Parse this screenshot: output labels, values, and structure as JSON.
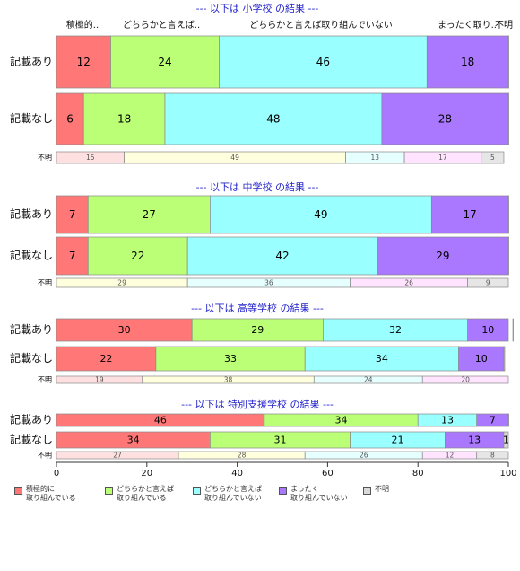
{
  "colors": [
    "#ff7777",
    "#bbff77",
    "#99ffff",
    "#aa77ff",
    "#d9d9d9"
  ],
  "unknown_colors": [
    "#ffe0e0",
    "#ffffdd",
    "#e6ffff",
    "#ffe3ff",
    "#e6e6e6"
  ],
  "top_headers": [
    "積極的..",
    "どちらかと言えば..",
    "どちらかと言えば取り組んでいない",
    "まったく取り..",
    "不明"
  ],
  "legend": [
    {
      "label": "積極的に\n取り組んでいる"
    },
    {
      "label": "どちらかと言えば\n取り組んでいる"
    },
    {
      "label": "どちらかと言えば\n取り組んでいない"
    },
    {
      "label": "まったく\n取り組んでいない"
    },
    {
      "label": "不明"
    }
  ],
  "chart_data": {
    "type": "bar",
    "orientation": "horizontal",
    "stacked": "percent",
    "xlim": [
      0,
      100
    ],
    "xticks": [
      0,
      20,
      40,
      60,
      80,
      100
    ],
    "categories": [
      "積極的に取り組んでいる",
      "どちらかと言えば取り組んでいる",
      "どちらかと言えば取り組んでいない",
      "まったく取り組んでいない",
      "不明"
    ],
    "groups": [
      {
        "title": "--- 以下は 小学校 の結果 ---",
        "rows": [
          {
            "label": "記載あり",
            "values": [
              12,
              24,
              46,
              18,
              0.4
            ],
            "labels": [
              "12",
              "24",
              "46",
              "18",
              ""
            ]
          },
          {
            "label": "記載なし",
            "values": [
              6,
              18,
              48,
              28,
              0.4
            ],
            "labels": [
              "6",
              "18",
              "48",
              "28",
              ""
            ]
          },
          {
            "label": "不明",
            "values": [
              15,
              49,
              13,
              17,
              5
            ],
            "labels": [
              "15",
              "49",
              "13",
              "17",
              "5"
            ]
          }
        ]
      },
      {
        "title": "--- 以下は 中学校 の結果 ---",
        "rows": [
          {
            "label": "記載あり",
            "values": [
              7,
              27,
              49,
              17,
              0.4
            ],
            "labels": [
              "7",
              "27",
              "49",
              "17",
              ""
            ]
          },
          {
            "label": "記載なし",
            "values": [
              7,
              22,
              42,
              29,
              0.4
            ],
            "labels": [
              "7",
              "22",
              "42",
              "29",
              ""
            ]
          },
          {
            "label": "不明",
            "values": [
              0,
              29,
              36,
              26,
              9
            ],
            "labels": [
              "",
              "29",
              "36",
              "26",
              "9"
            ]
          }
        ]
      },
      {
        "title": "--- 以下は 高等学校 の結果 ---",
        "rows": [
          {
            "label": "記載あり",
            "values": [
              30,
              29,
              32,
              10,
              0.2
            ],
            "labels": [
              "30",
              "29",
              "32",
              "10",
              ""
            ]
          },
          {
            "label": "記載なし",
            "values": [
              22,
              33,
              34,
              10,
              0.2
            ],
            "labels": [
              "22",
              "33",
              "34",
              "10",
              ""
            ]
          },
          {
            "label": "不明",
            "values": [
              19,
              38,
              24,
              20,
              0
            ],
            "labels": [
              "19",
              "38",
              "24",
              "20",
              ""
            ]
          }
        ]
      },
      {
        "title": "--- 以下は 特別支援学校 の結果 ---",
        "rows": [
          {
            "label": "記載あり",
            "values": [
              46,
              34,
              13,
              7,
              0.2
            ],
            "labels": [
              "46",
              "34",
              "13",
              "7",
              ""
            ]
          },
          {
            "label": "記載なし",
            "values": [
              34,
              31,
              21,
              13,
              1
            ],
            "labels": [
              "34",
              "31",
              "21",
              "13",
              "1"
            ]
          },
          {
            "label": "不明",
            "values": [
              27,
              28,
              26,
              12,
              8
            ],
            "labels": [
              "27",
              "28",
              "26",
              "12",
              "8"
            ]
          }
        ]
      }
    ]
  }
}
